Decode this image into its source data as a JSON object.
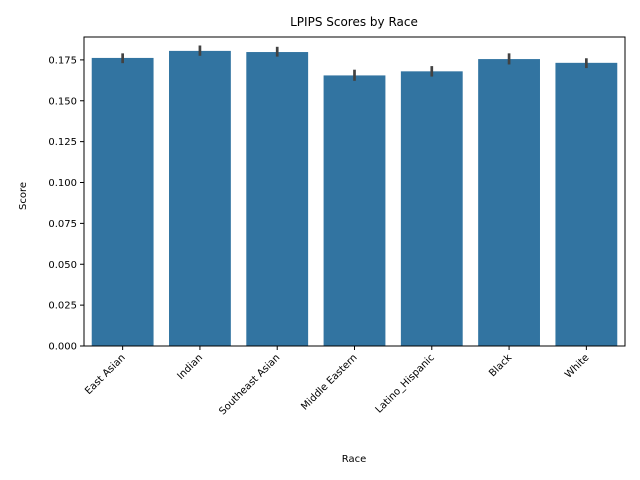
{
  "chart_data": {
    "type": "bar",
    "title": "LPIPS Scores by Race",
    "xlabel": "Race",
    "ylabel": "Score",
    "categories": [
      "East Asian",
      "Indian",
      "Southeast Asian",
      "Middle Eastern",
      "Latino_Hispanic",
      "Black",
      "White"
    ],
    "values": [
      0.1762,
      0.1805,
      0.1798,
      0.1655,
      0.168,
      0.1755,
      0.1732
    ],
    "error_low": [
      0.173,
      0.1775,
      0.177,
      0.1622,
      0.1648,
      0.1722,
      0.17
    ],
    "error_high": [
      0.179,
      0.1838,
      0.183,
      0.169,
      0.1712,
      0.179,
      0.176
    ],
    "yticks": [
      "0.000",
      "0.025",
      "0.050",
      "0.075",
      "0.100",
      "0.125",
      "0.150",
      "0.175"
    ],
    "ylim": [
      0,
      0.189
    ],
    "bar_color": "#3274a1",
    "error_color": "#424242",
    "grid": false,
    "legend": "none"
  }
}
